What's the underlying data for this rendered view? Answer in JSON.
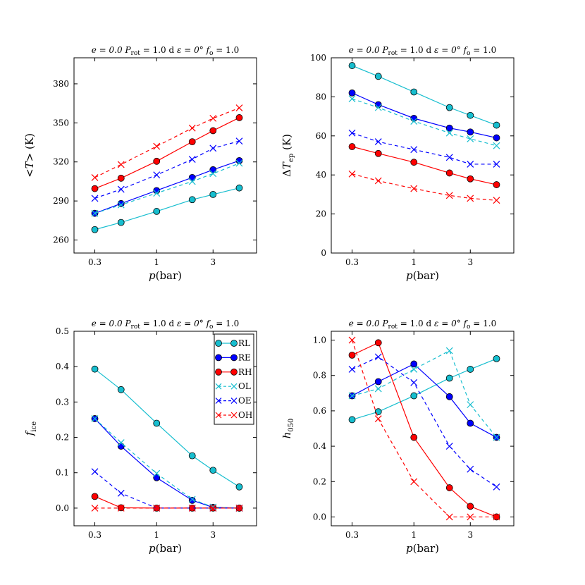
{
  "chart_data": [
    {
      "type": "line",
      "id": "mean-temperature",
      "title": "e = 0.0   P_rot = 1.0 d   ε = 0°   f_o = 1.0",
      "title_parts": {
        "e": "e = 0.0",
        "prot_sym": "P",
        "prot_sub": "rot",
        "prot_val": " = 1.0 d",
        "eps": "ε = 0°",
        "fo_sym": "f",
        "fo_sub": "o",
        "fo_val": " = 1.0"
      },
      "xlabel": "p(bar)",
      "xlabel_parts": {
        "sym": "p",
        "rest": "(bar)"
      },
      "ylabel": "<T> (K)",
      "ylabel_parts": {
        "pre": "<",
        "sym": "T",
        "post": "> (K)"
      },
      "xscale": "log",
      "xlim": [
        0.2,
        7.0
      ],
      "ylim": [
        250,
        400
      ],
      "xticks": [
        0.3,
        1,
        3
      ],
      "xtick_labels": [
        "0.3",
        "1",
        "3"
      ],
      "yticks": [
        260,
        290,
        320,
        350,
        380
      ],
      "ytick_labels": [
        "260",
        "290",
        "320",
        "350",
        "380"
      ],
      "x": [
        0.3,
        0.5,
        1.0,
        2.0,
        3.0,
        5.0
      ],
      "series": [
        {
          "name": "RL",
          "color": "#17becf",
          "style": "solid",
          "marker": "circle",
          "values": [
            268,
            273.5,
            282,
            291,
            295,
            300
          ]
        },
        {
          "name": "RE",
          "color": "#0000ff",
          "style": "solid",
          "marker": "circle",
          "values": [
            280.5,
            288,
            298,
            308,
            314,
            321
          ]
        },
        {
          "name": "RH",
          "color": "#ff0000",
          "style": "solid",
          "marker": "circle",
          "values": [
            299.5,
            307.5,
            320.5,
            335.5,
            344,
            354
          ]
        },
        {
          "name": "OL",
          "color": "#17becf",
          "style": "dashed",
          "marker": "x",
          "values": [
            280.5,
            287,
            296,
            305,
            311,
            319
          ]
        },
        {
          "name": "OE",
          "color": "#0000ff",
          "style": "dashed",
          "marker": "x",
          "values": [
            292,
            299,
            310,
            322,
            330.5,
            336
          ]
        },
        {
          "name": "OH",
          "color": "#ff0000",
          "style": "dashed",
          "marker": "x",
          "values": [
            308,
            318,
            332,
            346,
            353.5,
            361.5
          ]
        }
      ]
    },
    {
      "type": "line",
      "id": "equator-pole-difference",
      "title": "e = 0.0   P_rot = 1.0 d   ε = 0°   f_o = 1.0",
      "title_parts": {
        "e": "e = 0.0",
        "prot_sym": "P",
        "prot_sub": "rot",
        "prot_val": " = 1.0 d",
        "eps": "ε = 0°",
        "fo_sym": "f",
        "fo_sub": "o",
        "fo_val": " = 1.0"
      },
      "xlabel": "p(bar)",
      "xlabel_parts": {
        "sym": "p",
        "rest": "(bar)"
      },
      "ylabel": "ΔT_ep (K)",
      "ylabel_parts": {
        "pre": "Δ",
        "sym": "T",
        "sub": "ep",
        "post": " (K)"
      },
      "xscale": "log",
      "xlim": [
        0.2,
        7.0
      ],
      "ylim": [
        0,
        100
      ],
      "xticks": [
        0.3,
        1,
        3
      ],
      "xtick_labels": [
        "0.3",
        "1",
        "3"
      ],
      "yticks": [
        0,
        20,
        40,
        60,
        80,
        100
      ],
      "ytick_labels": [
        "0",
        "20",
        "40",
        "60",
        "80",
        "100"
      ],
      "x": [
        0.3,
        0.5,
        1.0,
        2.0,
        3.0,
        5.0
      ],
      "series": [
        {
          "name": "RL",
          "color": "#17becf",
          "style": "solid",
          "marker": "circle",
          "values": [
            96,
            90.5,
            82.5,
            74.5,
            70.5,
            65.5
          ]
        },
        {
          "name": "RE",
          "color": "#0000ff",
          "style": "solid",
          "marker": "circle",
          "values": [
            82,
            76,
            69,
            64,
            62,
            59
          ]
        },
        {
          "name": "RH",
          "color": "#ff0000",
          "style": "solid",
          "marker": "circle",
          "values": [
            54.5,
            51,
            46.5,
            41,
            38,
            35
          ]
        },
        {
          "name": "OL",
          "color": "#17becf",
          "style": "dashed",
          "marker": "x",
          "values": [
            79,
            74.5,
            67.5,
            61.5,
            58.5,
            55
          ]
        },
        {
          "name": "OE",
          "color": "#0000ff",
          "style": "dashed",
          "marker": "x",
          "values": [
            61.5,
            57,
            53,
            49,
            45.5,
            45.5
          ]
        },
        {
          "name": "OH",
          "color": "#ff0000",
          "style": "dashed",
          "marker": "x",
          "values": [
            40.5,
            37,
            33,
            29.5,
            28,
            27
          ]
        }
      ]
    },
    {
      "type": "line",
      "id": "ice-fraction",
      "title": "e = 0.0   P_rot = 1.0 d   ε = 0°   f_o = 1.0",
      "title_parts": {
        "e": "e = 0.0",
        "prot_sym": "P",
        "prot_sub": "rot",
        "prot_val": " = 1.0 d",
        "eps": "ε = 0°",
        "fo_sym": "f",
        "fo_sub": "o",
        "fo_val": " = 1.0"
      },
      "xlabel": "p(bar)",
      "xlabel_parts": {
        "sym": "p",
        "rest": "(bar)"
      },
      "ylabel": "f_ice",
      "ylabel_parts": {
        "pre": "",
        "sym": "f",
        "sub": "ice",
        "post": ""
      },
      "xscale": "log",
      "xlim": [
        0.2,
        7.0
      ],
      "ylim": [
        -0.05,
        0.5
      ],
      "xticks": [
        0.3,
        1,
        3
      ],
      "xtick_labels": [
        "0.3",
        "1",
        "3"
      ],
      "yticks": [
        0.0,
        0.1,
        0.2,
        0.3,
        0.4,
        0.5
      ],
      "ytick_labels": [
        "0.0",
        "0.1",
        "0.2",
        "0.3",
        "0.4",
        "0.5"
      ],
      "legend": {
        "location": "top-right",
        "entries": [
          "RL",
          "RE",
          "RH",
          "OL",
          "OE",
          "OH"
        ]
      },
      "x": [
        0.3,
        0.5,
        1.0,
        2.0,
        3.0,
        5.0
      ],
      "series": [
        {
          "name": "RL",
          "color": "#17becf",
          "style": "solid",
          "marker": "circle",
          "values": [
            0.393,
            0.335,
            0.24,
            0.148,
            0.107,
            0.06
          ]
        },
        {
          "name": "RE",
          "color": "#0000ff",
          "style": "solid",
          "marker": "circle",
          "values": [
            0.253,
            0.175,
            0.086,
            0.022,
            0.002,
            0.0
          ]
        },
        {
          "name": "RH",
          "color": "#ff0000",
          "style": "solid",
          "marker": "circle",
          "values": [
            0.033,
            0.001,
            0.0,
            0.0,
            0.0,
            0.0
          ]
        },
        {
          "name": "OL",
          "color": "#17becf",
          "style": "dashed",
          "marker": "x",
          "values": [
            0.253,
            0.185,
            0.098,
            0.025,
            0.003,
            0.0
          ]
        },
        {
          "name": "OE",
          "color": "#0000ff",
          "style": "dashed",
          "marker": "x",
          "values": [
            0.103,
            0.042,
            0.0,
            0.0,
            0.0,
            0.0
          ]
        },
        {
          "name": "OH",
          "color": "#ff0000",
          "style": "dashed",
          "marker": "x",
          "values": [
            0.0,
            0.0,
            0.0,
            0.0,
            0.0,
            0.0
          ]
        }
      ]
    },
    {
      "type": "line",
      "id": "habitability-050",
      "title": "e = 0.0   P_rot = 1.0 d   ε = 0°   f_o = 1.0",
      "title_parts": {
        "e": "e = 0.0",
        "prot_sym": "P",
        "prot_sub": "rot",
        "prot_val": " = 1.0 d",
        "eps": "ε = 0°",
        "fo_sym": "f",
        "fo_sub": "o",
        "fo_val": " = 1.0"
      },
      "xlabel": "p(bar)",
      "xlabel_parts": {
        "sym": "p",
        "rest": "(bar)"
      },
      "ylabel": "h_050",
      "ylabel_parts": {
        "pre": "",
        "sym": "h",
        "sub": "050",
        "post": ""
      },
      "xscale": "log",
      "xlim": [
        0.2,
        7.0
      ],
      "ylim": [
        -0.05,
        1.05
      ],
      "xticks": [
        0.3,
        1,
        3
      ],
      "xtick_labels": [
        "0.3",
        "1",
        "3"
      ],
      "yticks": [
        0.0,
        0.2,
        0.4,
        0.6,
        0.8,
        1.0
      ],
      "ytick_labels": [
        "0.0",
        "0.2",
        "0.4",
        "0.6",
        "0.8",
        "1.0"
      ],
      "x": [
        0.3,
        0.5,
        1.0,
        2.0,
        3.0,
        5.0
      ],
      "series": [
        {
          "name": "RL",
          "color": "#17becf",
          "style": "solid",
          "marker": "circle",
          "values": [
            0.55,
            0.595,
            0.685,
            0.785,
            0.835,
            0.895
          ]
        },
        {
          "name": "RE",
          "color": "#0000ff",
          "style": "solid",
          "marker": "circle",
          "values": [
            0.685,
            0.765,
            0.865,
            0.68,
            0.53,
            0.45
          ]
        },
        {
          "name": "RH",
          "color": "#ff0000",
          "style": "solid",
          "marker": "circle",
          "values": [
            0.915,
            0.985,
            0.45,
            0.165,
            0.06,
            0.0
          ]
        },
        {
          "name": "OL",
          "color": "#17becf",
          "style": "dashed",
          "marker": "x",
          "values": [
            0.685,
            0.725,
            0.835,
            0.94,
            0.635,
            0.45
          ]
        },
        {
          "name": "OE",
          "color": "#0000ff",
          "style": "dashed",
          "marker": "x",
          "values": [
            0.835,
            0.905,
            0.76,
            0.4,
            0.27,
            0.17
          ]
        },
        {
          "name": "OH",
          "color": "#ff0000",
          "style": "dashed",
          "marker": "x",
          "values": [
            1.0,
            0.555,
            0.2,
            0.0,
            0.0,
            0.0
          ]
        }
      ]
    }
  ]
}
